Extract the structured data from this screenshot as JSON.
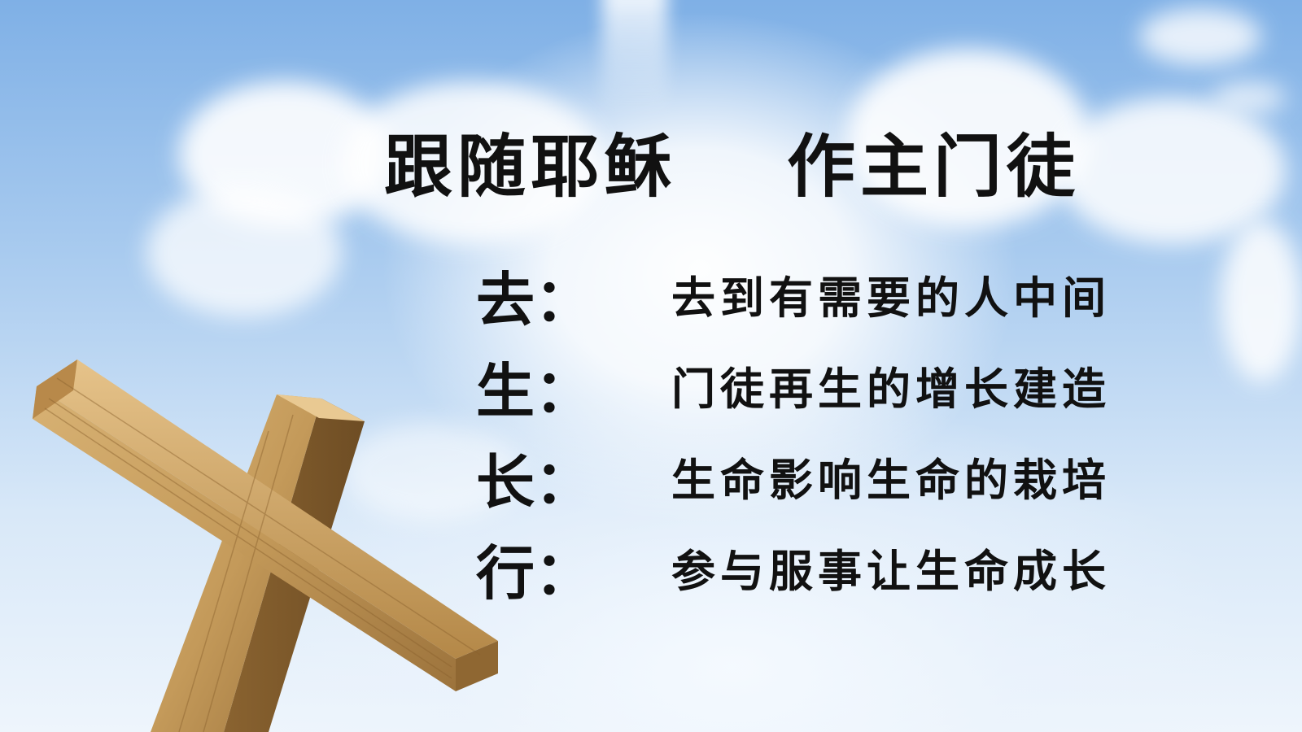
{
  "slide": {
    "title_left": "跟随耶稣",
    "title_right": "作主门徒",
    "rows": [
      {
        "char": "去：",
        "desc": "去到有需要的人中间"
      },
      {
        "char": "生：",
        "desc": "门徒再生的增长建造"
      },
      {
        "char": "长：",
        "desc": "生命影响生命的栽培"
      },
      {
        "char": "行：",
        "desc": "参与服事让生命成长"
      }
    ]
  },
  "colors": {
    "sky_top": "#7fb0e6",
    "text": "#111111",
    "wood": "#c49a5a"
  },
  "icons": {
    "cross": "wooden-cross-icon"
  }
}
